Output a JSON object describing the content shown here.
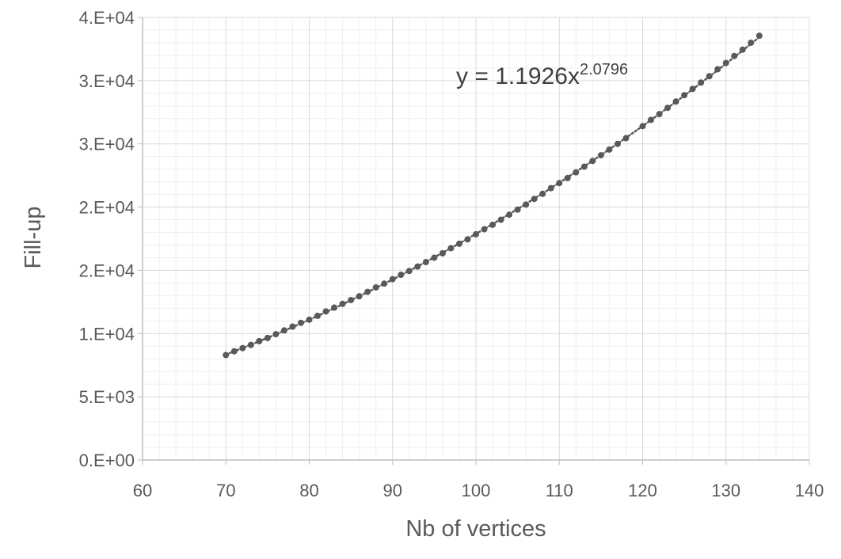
{
  "chart_data": {
    "type": "scatter",
    "title": "",
    "xlabel": "Nb of vertices",
    "ylabel": "Fill-up",
    "xlim": [
      60,
      140
    ],
    "ylim": [
      0,
      35000
    ],
    "x_ticks": [
      "60",
      "70",
      "80",
      "90",
      "100",
      "110",
      "120",
      "130",
      "140"
    ],
    "y_ticks": [
      "0.E+00",
      "5.E+03",
      "1.E+04",
      "2.E+04",
      "2.E+04",
      "3.E+04",
      "3.E+04",
      "4.E+04"
    ],
    "grid": {
      "major": true,
      "minor": true
    },
    "legend": "none",
    "marker_color": "#595959",
    "trendline": {
      "type": "power",
      "coefficient": 1.1926,
      "exponent": 2.0796,
      "label_base": "y = 1.1926x",
      "label_exponent": "2.0796",
      "style": "dotted"
    },
    "series": [
      {
        "x": [
          70,
          71,
          72,
          73,
          74,
          75,
          76,
          77,
          78,
          79,
          80,
          81,
          82,
          83,
          84,
          85,
          86,
          87,
          88,
          89,
          90,
          91,
          92,
          93,
          94,
          95,
          96,
          97,
          98,
          99,
          100,
          101,
          102,
          103,
          104,
          105,
          106,
          107,
          108,
          109,
          110,
          111,
          112,
          113,
          114,
          115,
          116,
          117,
          118,
          120,
          121,
          122,
          123,
          124,
          125,
          126,
          127,
          128,
          129,
          130,
          131,
          132,
          133,
          134
        ],
        "y": [
          8300,
          8600,
          8850,
          9100,
          9400,
          9650,
          9950,
          10250,
          10550,
          10850,
          11100,
          11400,
          11750,
          12050,
          12350,
          12650,
          12950,
          13300,
          13650,
          13950,
          14300,
          14650,
          14950,
          15300,
          15650,
          16000,
          16350,
          16750,
          17100,
          17450,
          17850,
          18250,
          18600,
          19000,
          19400,
          19800,
          20200,
          20650,
          21050,
          21500,
          21900,
          22300,
          22750,
          23200,
          23650,
          24100,
          24550,
          25000,
          25450,
          26400,
          26900,
          27350,
          27850,
          28350,
          28850,
          29350,
          29850,
          30350,
          30900,
          31400,
          31950,
          32450,
          33000,
          33550
        ]
      }
    ]
  }
}
